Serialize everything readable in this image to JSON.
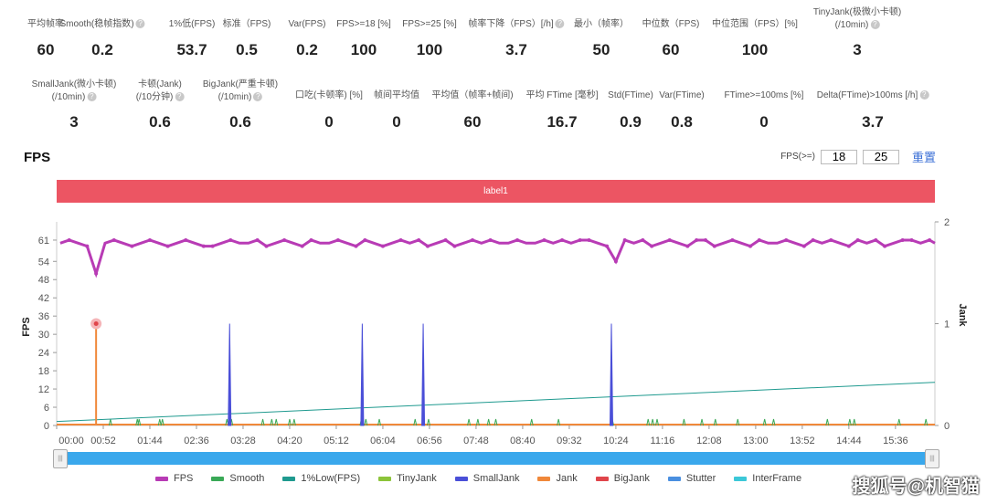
{
  "stats_row1": [
    {
      "label": "平均帧率",
      "value": "60",
      "help": false
    },
    {
      "label": "Smooth(稳帧指数)",
      "value": "0.2",
      "help": true
    },
    {
      "label": "1%低(FPS)",
      "value": "53.7",
      "help": false
    },
    {
      "label": "标准（FPS)",
      "value": "0.5",
      "help": false
    },
    {
      "label": "Var(FPS)",
      "value": "0.2",
      "help": false
    },
    {
      "label": "FPS>=18 [%]",
      "value": "100",
      "help": false
    },
    {
      "label": "FPS>=25 [%]",
      "value": "100",
      "help": false
    },
    {
      "label": "帧率下降（FPS）[/h]",
      "value": "3.7",
      "help": true
    },
    {
      "label": "最小（帧率）",
      "value": "50",
      "help": false
    },
    {
      "label": "中位数（FPS)",
      "value": "60",
      "help": false
    },
    {
      "label": "中位范围（FPS）[%]",
      "value": "100",
      "help": false
    },
    {
      "label": "TinyJank(极微小卡顿)",
      "label2": "(/10min)",
      "value": "3",
      "help": true
    }
  ],
  "stats_row2": [
    {
      "label": "SmallJank(微小卡顿)",
      "label2": "(/10min)",
      "value": "3",
      "help": true
    },
    {
      "label": "卡顿(Jank)",
      "label2": "(/10分钟)",
      "value": "0.6",
      "help": true
    },
    {
      "label": "BigJank(严重卡顿)",
      "label2": "(/10min)",
      "value": "0.6",
      "help": true
    },
    {
      "label": "口吃(卡顿率) [%]",
      "value": "0",
      "help": false
    },
    {
      "label": "帧间平均值",
      "value": "0",
      "help": false
    },
    {
      "label": "平均值（帧率+帧间)",
      "value": "60",
      "help": false
    },
    {
      "label": "平均 FTime [毫秒]",
      "value": "16.7",
      "help": false
    },
    {
      "label": "Std(FTime)",
      "value": "0.9",
      "help": false
    },
    {
      "label": "Var(FTime)",
      "value": "0.8",
      "help": false
    },
    {
      "label": "FTime>=100ms [%]",
      "value": "0",
      "help": false
    },
    {
      "label": "Delta(FTime)>100ms [/h]",
      "value": "3.7",
      "help": true
    }
  ],
  "section_title": "FPS",
  "fps_filter": {
    "label": "FPS(>=)",
    "value1": "18",
    "value2": "25",
    "reset": "重置"
  },
  "label_bar": "label1",
  "watermark": "搜狐号@机智猫",
  "chart_data": {
    "type": "line",
    "xlabel": "",
    "ylabel": "FPS",
    "y2label": "Jank",
    "xlim_seconds": [
      0,
      980
    ],
    "ylim": [
      0,
      67
    ],
    "y2lim": [
      0,
      2
    ],
    "yticks": [
      0,
      6,
      12,
      18,
      24,
      30,
      36,
      42,
      48,
      54,
      61
    ],
    "y2ticks": [
      0,
      1,
      2
    ],
    "xticks": [
      "00:00",
      "00:52",
      "01:44",
      "02:36",
      "03:28",
      "04:20",
      "05:12",
      "06:04",
      "06:56",
      "07:48",
      "08:40",
      "09:32",
      "10:24",
      "11:16",
      "12:08",
      "13:00",
      "13:52",
      "14:44",
      "15:36"
    ],
    "colors": {
      "FPS": "#b83bb5",
      "Smooth": "#3aa957",
      "1%Low(FPS)": "#1f9a8f",
      "TinyJank": "#8cc43a",
      "SmallJank": "#4a4fd8",
      "Jank": "#f0883a",
      "BigJank": "#e0454b",
      "Stutter": "#4a8fe0",
      "InterFrame": "#3cc8d8"
    },
    "legend": [
      "FPS",
      "Smooth",
      "1%Low(FPS)",
      "TinyJank",
      "SmallJank",
      "Jank",
      "BigJank",
      "Stutter",
      "InterFrame"
    ],
    "fps_step_seconds": 10,
    "fps": [
      60,
      61,
      60,
      59,
      50,
      60,
      61,
      60,
      59,
      60,
      61,
      60,
      59,
      60,
      61,
      60,
      59,
      59,
      60,
      61,
      60,
      60,
      61,
      59,
      60,
      61,
      60,
      59,
      61,
      60,
      60,
      61,
      60,
      59,
      61,
      60,
      59,
      60,
      61,
      60,
      61,
      59,
      60,
      61,
      59,
      60,
      61,
      60,
      61,
      60,
      60,
      61,
      60,
      60,
      61,
      60,
      61,
      60,
      61,
      61,
      60,
      59,
      54,
      61,
      60,
      61,
      59,
      60,
      61,
      60,
      59,
      61,
      61,
      59,
      60,
      61,
      60,
      59,
      61,
      60,
      60,
      61,
      60,
      59,
      61,
      60,
      61,
      60,
      59,
      61,
      60,
      61,
      59,
      60,
      61,
      61,
      60,
      61,
      60
    ],
    "low1_percent": {
      "start": 1.3,
      "end": 14.2
    },
    "jank": [
      {
        "t": 44,
        "v": 1
      }
    ],
    "bigjank": [
      {
        "t": 44,
        "v": 1
      }
    ],
    "smalljank": [
      {
        "t": 193,
        "v": 1
      },
      {
        "t": 341,
        "v": 1
      },
      {
        "t": 409,
        "v": 1
      },
      {
        "t": 619,
        "v": 1
      }
    ],
    "smooth_spikes": [
      60,
      90,
      92,
      115,
      118,
      190,
      195,
      230,
      240,
      245,
      260,
      265,
      340,
      345,
      360,
      400,
      415,
      460,
      470,
      482,
      490,
      530,
      560,
      620,
      660,
      665,
      670,
      700,
      720,
      735,
      760,
      790,
      800,
      860,
      885,
      890,
      940,
      970
    ]
  }
}
